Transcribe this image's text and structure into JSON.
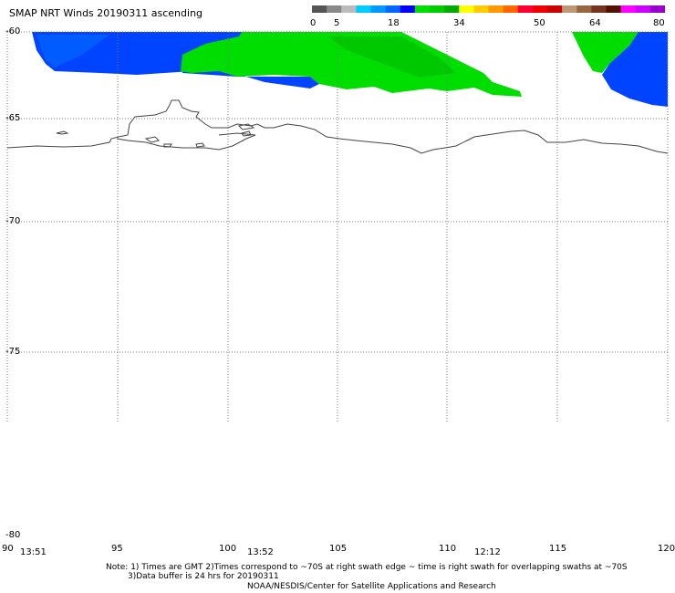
{
  "title": "SMAP NRT Winds 20190311 ascending",
  "legend": {
    "ticks": [
      "0",
      "5",
      "18",
      "34",
      "50",
      "64",
      "80"
    ],
    "segments": [
      {
        "color": "#555555"
      },
      {
        "color": "#888888"
      },
      {
        "color": "#bbbbbb"
      },
      {
        "color": "#00ccff"
      },
      {
        "color": "#0099ff"
      },
      {
        "color": "#0066ff"
      },
      {
        "color": "#0000ff"
      },
      {
        "color": "#00dd00"
      },
      {
        "color": "#00cc00"
      },
      {
        "color": "#00aa00"
      },
      {
        "color": "#ffff00"
      },
      {
        "color": "#ffcc00"
      },
      {
        "color": "#ff9900"
      },
      {
        "color": "#ff6600"
      },
      {
        "color": "#ff0033"
      },
      {
        "color": "#ee0000"
      },
      {
        "color": "#cc0000"
      },
      {
        "color": "#bb9977"
      },
      {
        "color": "#996644"
      },
      {
        "color": "#773322"
      },
      {
        "color": "#551100"
      },
      {
        "color": "#ff00ff"
      },
      {
        "color": "#cc00ff"
      },
      {
        "color": "#9900cc"
      }
    ]
  },
  "lat_labels": [
    "-60",
    "-65",
    "-70",
    "-75",
    "-80"
  ],
  "lon_labels": [
    "90",
    "95",
    "100",
    "105",
    "110",
    "115",
    "120"
  ],
  "swath_times": [
    "13:51",
    "13:52",
    "12:12"
  ],
  "notes": {
    "line1": "Note: 1) Times are GMT 2)Times correspond to ~70S at right swath edge ~ time is right swath for overlapping swaths at ~70S",
    "line2": "3)Data buffer is 24 hrs for 20190311",
    "line3": "NOAA/NESDIS/Center for Satellite Applications and Research"
  },
  "colors": {
    "blue_wind": "#0044ff",
    "green_wind": "#00dd00",
    "coast": "#444444",
    "grid": "#777777"
  }
}
